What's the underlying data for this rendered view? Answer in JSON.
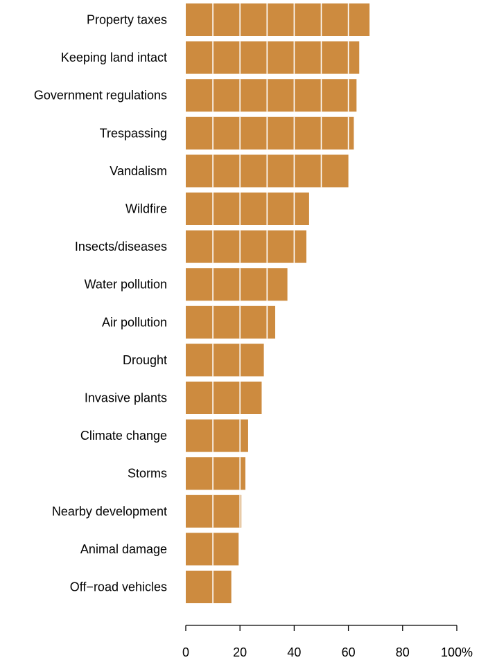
{
  "chart_data": {
    "type": "bar",
    "orientation": "horizontal",
    "title": "",
    "xlabel": "",
    "ylabel": "",
    "categories": [
      "Property taxes",
      "Keeping land intact",
      "Government regulations",
      "Trespassing",
      "Vandalism",
      "Wildfire",
      "Insects/diseases",
      "Water pollution",
      "Air pollution",
      "Drought",
      "Invasive plants",
      "Climate change",
      "Storms",
      "Nearby development",
      "Animal damage",
      "Off−road vehicles"
    ],
    "values": [
      67.8,
      64.0,
      63.0,
      62.0,
      60.0,
      45.5,
      44.5,
      37.5,
      33.0,
      28.8,
      28.0,
      23.0,
      22.0,
      20.5,
      19.5,
      16.8
    ],
    "xlim": [
      0,
      100
    ],
    "xticks": [
      0,
      20,
      40,
      60,
      80,
      100
    ],
    "xtick_labels": [
      "0",
      "20",
      "40",
      "60",
      "80",
      "100%"
    ],
    "grid_lines_at": [
      10,
      20,
      30,
      40,
      50,
      60
    ],
    "bar_color": "#CD8B3F",
    "grid_color": "#FFFFFF",
    "legend": "none"
  }
}
